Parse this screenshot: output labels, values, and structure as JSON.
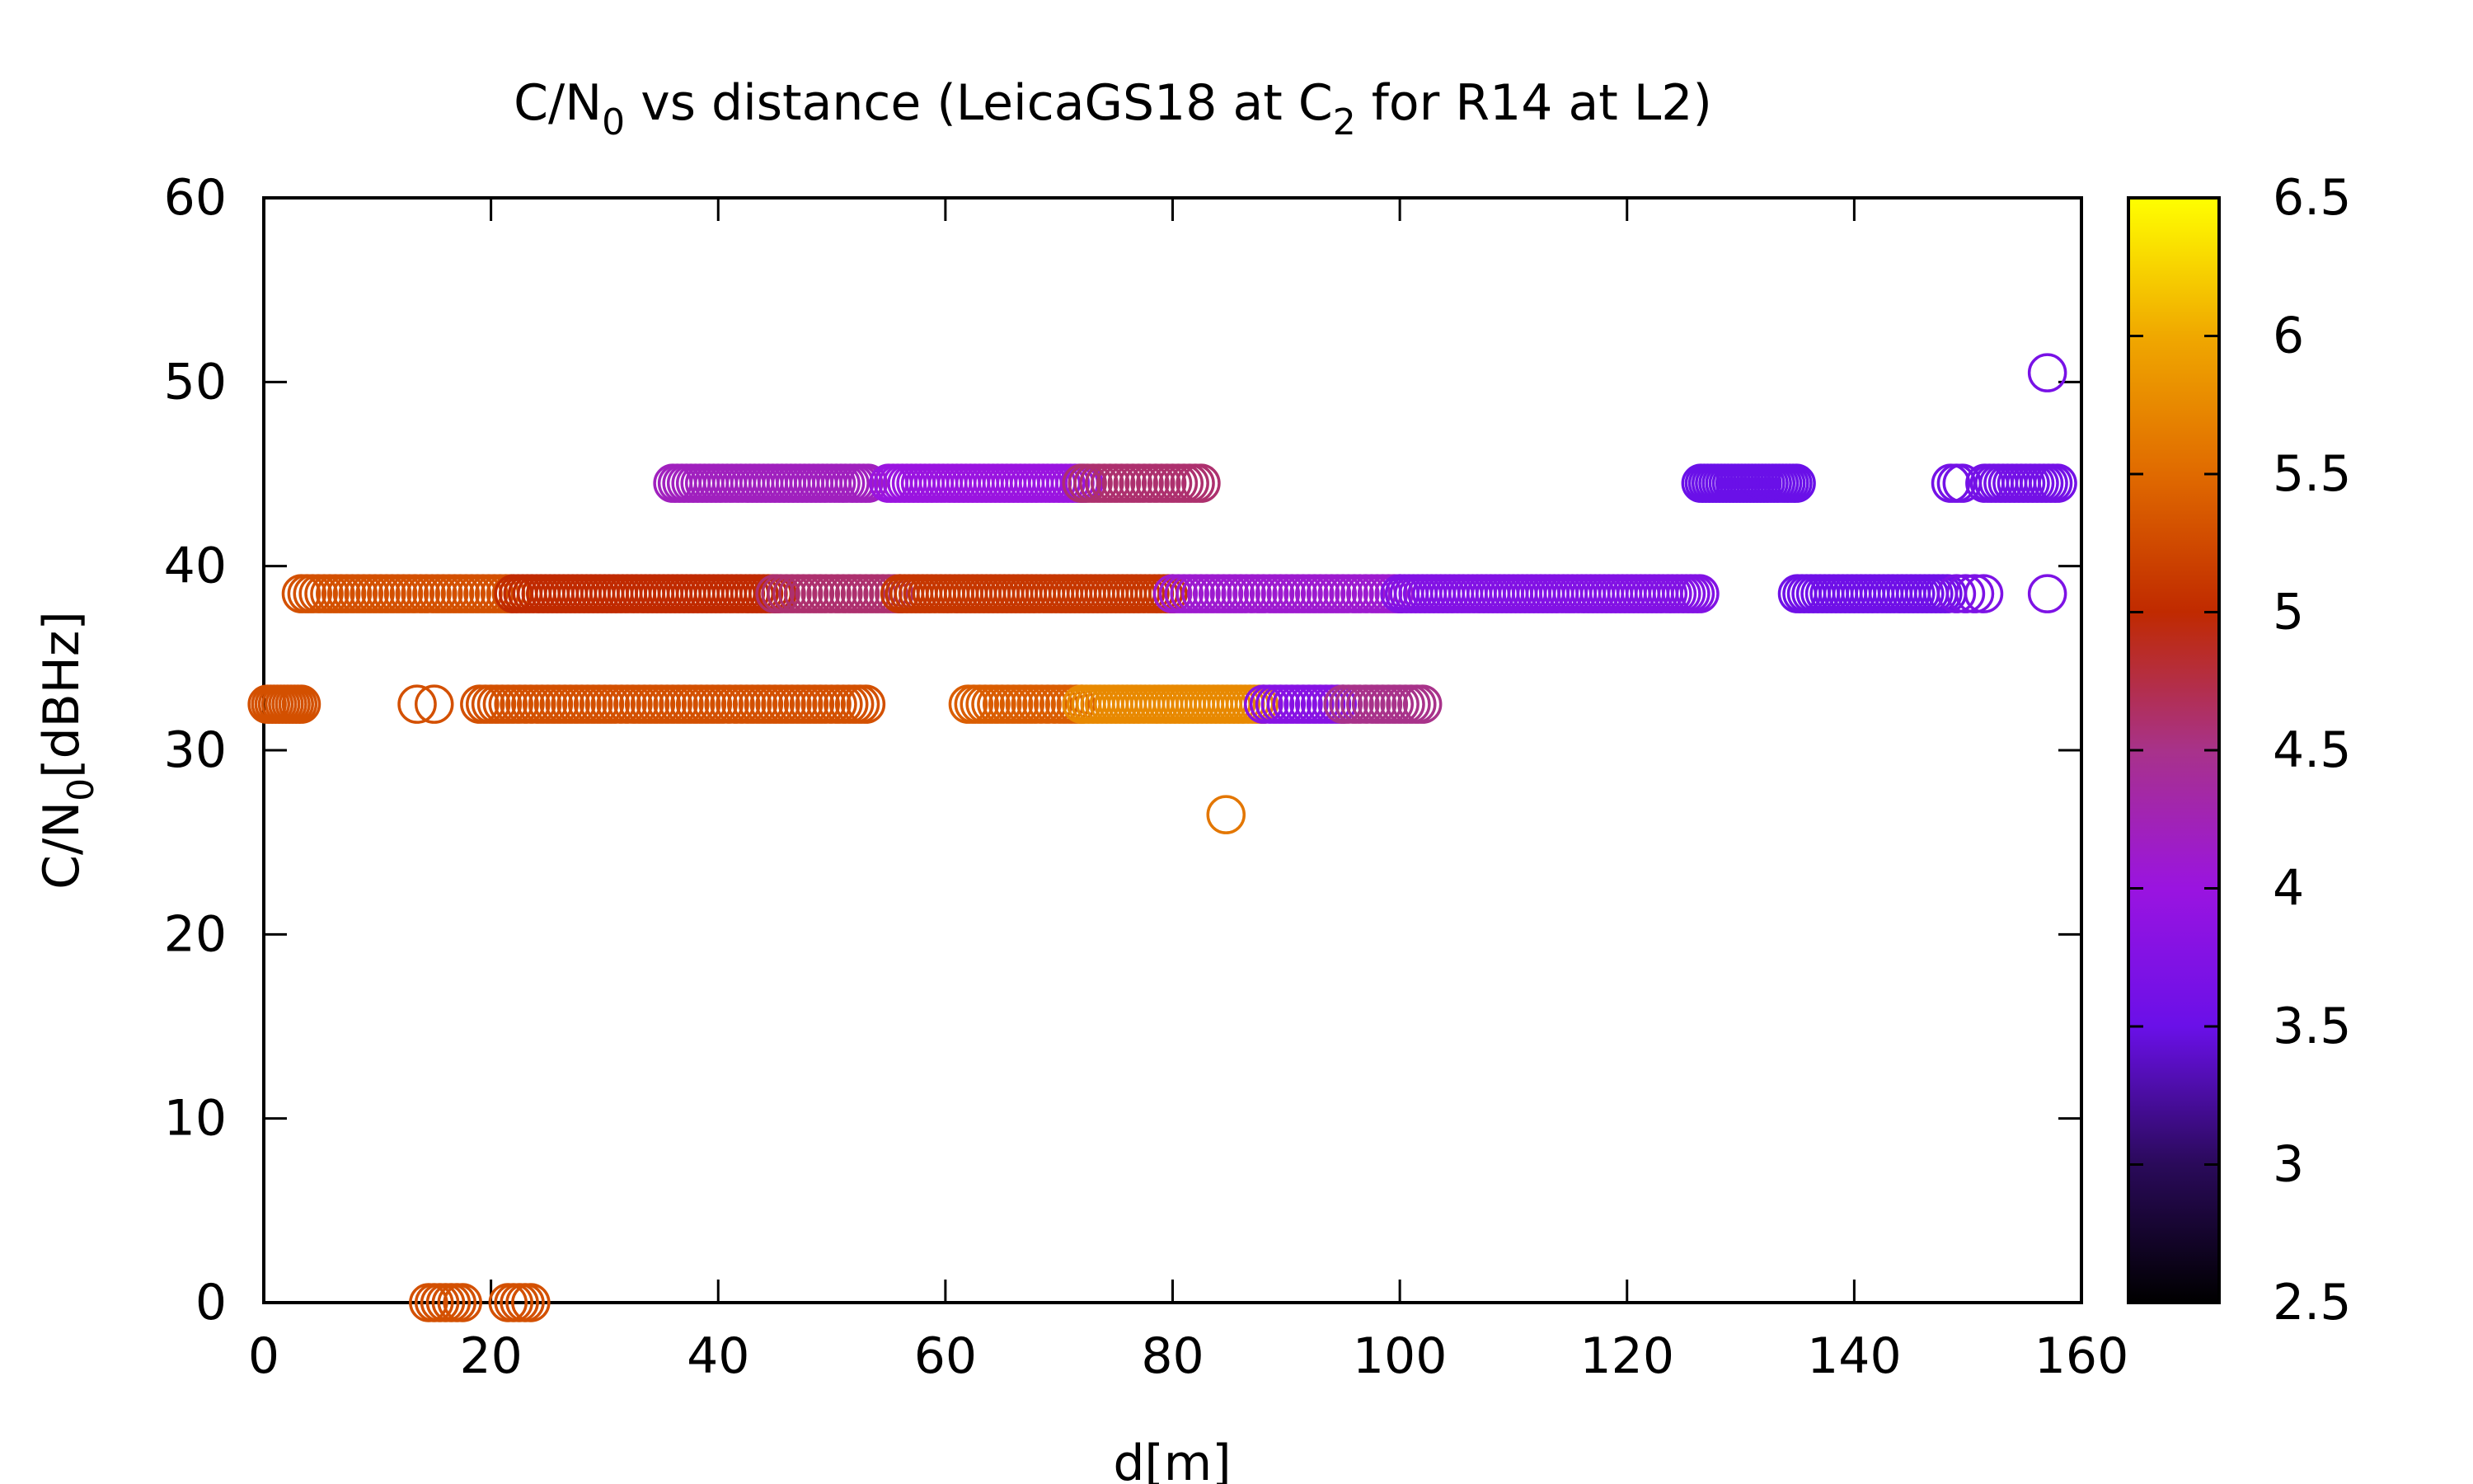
{
  "chart_data": {
    "type": "scatter",
    "title": {
      "pre": "C/N",
      "sub0": "0",
      "mid": " vs distance (LeicaGS18 at C",
      "sub1": "2",
      "post": " for R14 at L2)"
    },
    "xlabel": "d[m]",
    "ylabel": {
      "pre": "C/N",
      "sub": "0",
      "post": "[dBHz]"
    },
    "xlim": [
      0,
      160
    ],
    "ylim": [
      0,
      60
    ],
    "xticks": [
      0,
      20,
      40,
      60,
      80,
      100,
      120,
      140,
      160
    ],
    "yticks": [
      0,
      10,
      20,
      30,
      40,
      50,
      60
    ],
    "xtick_labels": [
      "0",
      "20",
      "40",
      "60",
      "80",
      "100",
      "120",
      "140",
      "160"
    ],
    "ytick_labels": [
      "0",
      "10",
      "20",
      "30",
      "40",
      "50",
      "60"
    ],
    "colorbar": {
      "range": [
        2.5,
        6.5
      ],
      "ticks": [
        2.5,
        3,
        3.5,
        4,
        4.5,
        5,
        5.5,
        6,
        6.5
      ],
      "tick_labels": [
        "2.5",
        "3",
        "3.5",
        "4",
        "4.5",
        "5",
        "5.5",
        "6",
        "6.5"
      ],
      "palette": "gnuplot-black-purple-red-orange-yellow"
    },
    "marker": "open-circle",
    "grid": false,
    "legend": "none",
    "segments": [
      {
        "y": 0,
        "x_start": 14.5,
        "x_end": 17.5,
        "step": 0.5,
        "color": 5.3
      },
      {
        "y": 0,
        "x_start": 21.5,
        "x_end": 23.5,
        "step": 0.5,
        "color": 5.3
      },
      {
        "y": 26.5,
        "x_start": 84.7,
        "x_end": 84.7,
        "step": 1,
        "color": 5.6
      },
      {
        "y": 32.5,
        "x_start": 0.3,
        "x_end": 3.3,
        "step": 0.3,
        "color": 5.3
      },
      {
        "y": 32.5,
        "x_start": 13.5,
        "x_end": 15,
        "step": 1.5,
        "color": 5.3
      },
      {
        "y": 32.5,
        "x_start": 19,
        "x_end": 53,
        "step": 0.5,
        "color": 5.3
      },
      {
        "y": 32.5,
        "x_start": 62,
        "x_end": 72,
        "step": 0.5,
        "color": 5.4
      },
      {
        "y": 32.5,
        "x_start": 72,
        "x_end": 88,
        "step": 0.4,
        "color": 5.75
      },
      {
        "y": 32.5,
        "x_start": 88,
        "x_end": 95,
        "step": 0.5,
        "color": 3.8
      },
      {
        "y": 32.5,
        "x_start": 95,
        "x_end": 102,
        "step": 0.5,
        "color": 4.5
      },
      {
        "y": 38.5,
        "x_start": 3.3,
        "x_end": 22,
        "step": 0.5,
        "color": 5.3
      },
      {
        "y": 38.5,
        "x_start": 22,
        "x_end": 45,
        "step": 0.4,
        "color": 5.0
      },
      {
        "y": 38.5,
        "x_start": 45,
        "x_end": 56,
        "step": 0.5,
        "color": 4.6
      },
      {
        "y": 38.5,
        "x_start": 56,
        "x_end": 80,
        "step": 0.4,
        "color": 5.1
      },
      {
        "y": 38.5,
        "x_start": 80,
        "x_end": 100,
        "step": 0.5,
        "color": 4.1
      },
      {
        "y": 38.5,
        "x_start": 100,
        "x_end": 126.5,
        "step": 0.4,
        "color": 3.75
      },
      {
        "y": 38.5,
        "x_start": 135,
        "x_end": 148,
        "step": 0.4,
        "color": 3.55
      },
      {
        "y": 38.5,
        "x_start": 149,
        "x_end": 151.5,
        "step": 0.8,
        "color": 3.7
      },
      {
        "y": 38.5,
        "x_start": 157,
        "x_end": 157,
        "step": 1,
        "color": 3.7
      },
      {
        "y": 44.5,
        "x_start": 36,
        "x_end": 53,
        "step": 0.4,
        "color": 4.2
      },
      {
        "y": 44.5,
        "x_start": 55,
        "x_end": 72,
        "step": 0.4,
        "color": 4.0
      },
      {
        "y": 44.5,
        "x_start": 72,
        "x_end": 82.5,
        "step": 0.5,
        "color": 4.6
      },
      {
        "y": 44.5,
        "x_start": 126.5,
        "x_end": 135,
        "step": 0.3,
        "color": 3.5
      },
      {
        "y": 44.5,
        "x_start": 148.5,
        "x_end": 149.5,
        "step": 0.5,
        "color": 3.6
      },
      {
        "y": 44.5,
        "x_start": 151.5,
        "x_end": 158,
        "step": 0.4,
        "color": 3.6
      },
      {
        "y": 50.5,
        "x_start": 157,
        "x_end": 157,
        "step": 1,
        "color": 3.65
      }
    ]
  }
}
